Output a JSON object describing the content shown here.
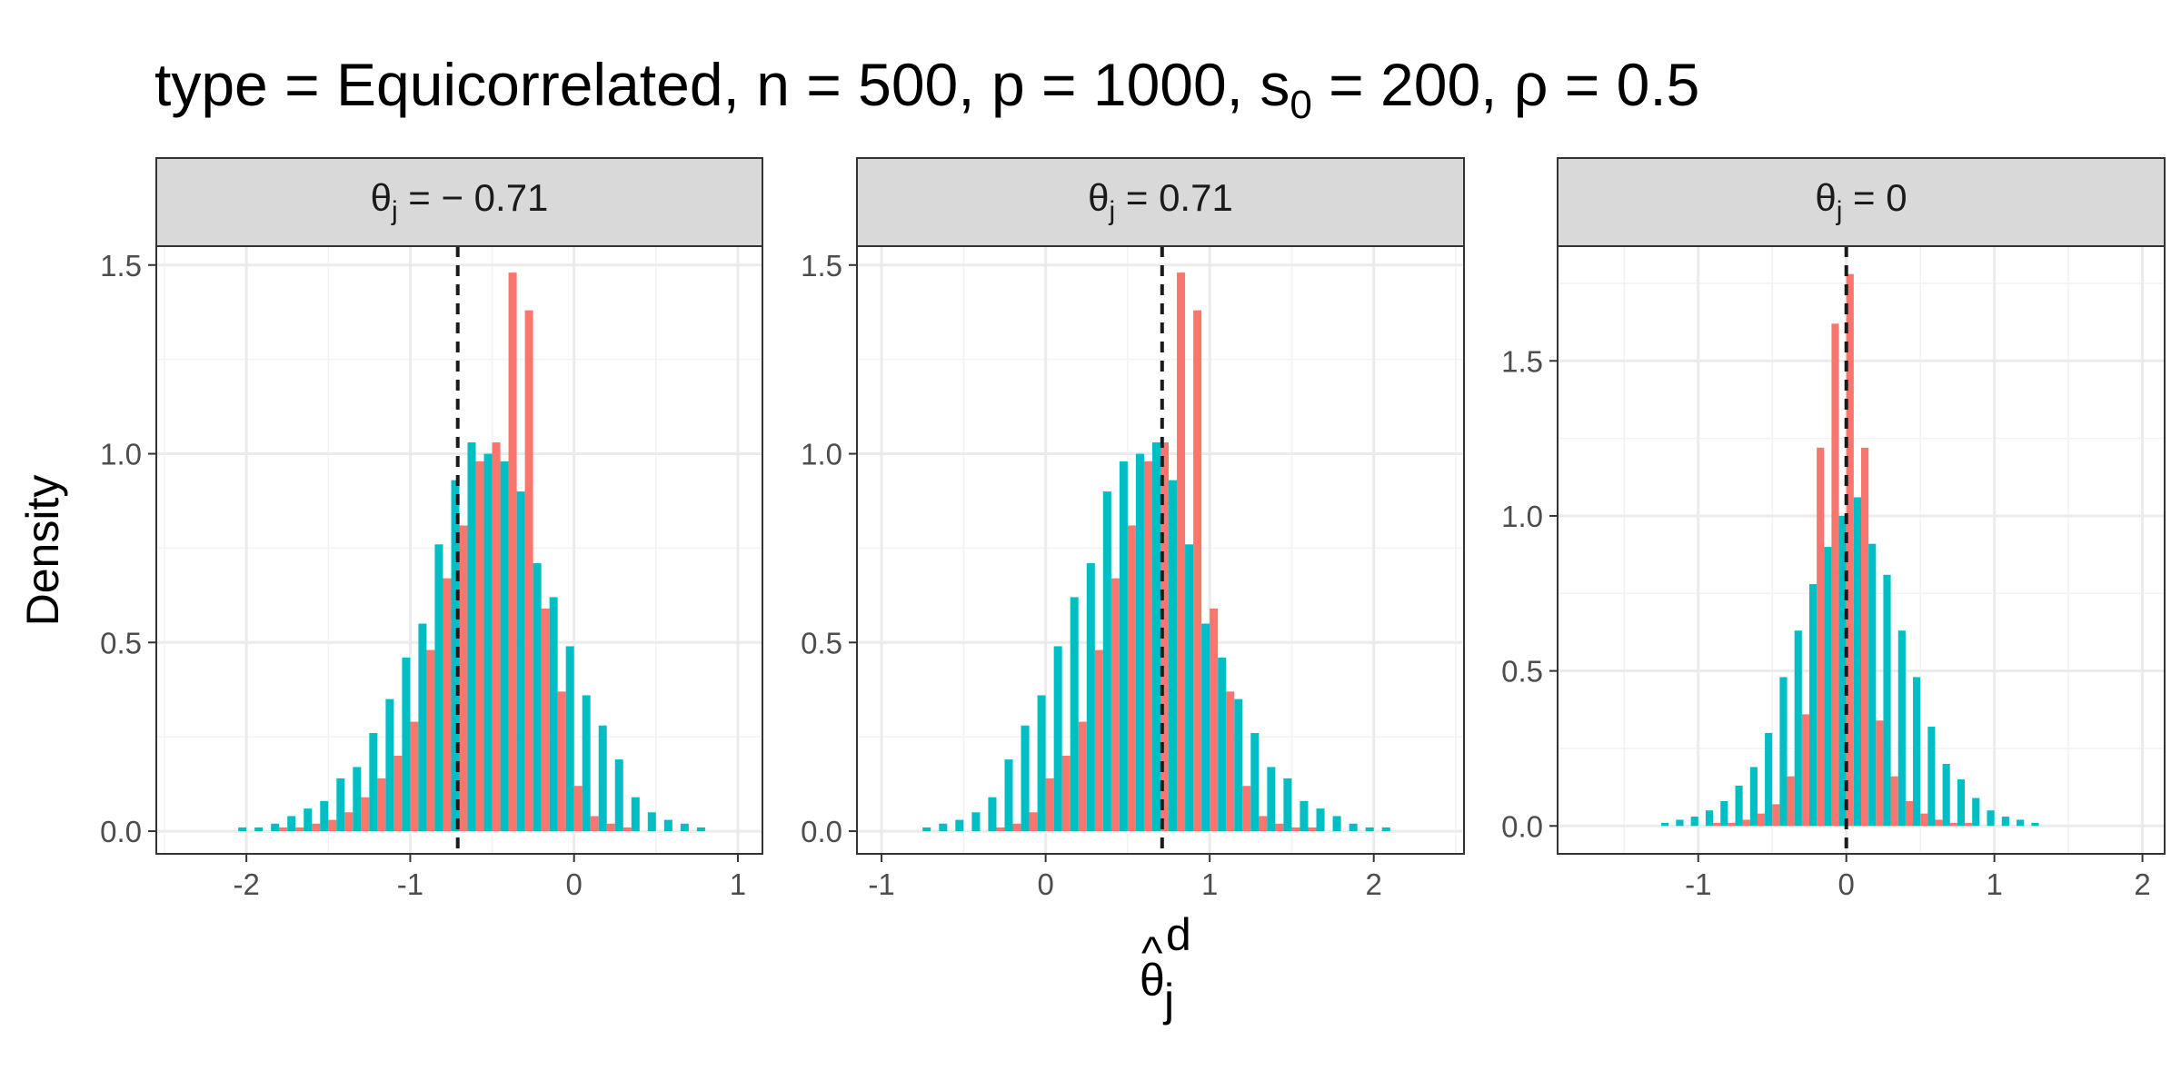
{
  "chart_data": {
    "type": "bar",
    "title": {
      "prefix": "type = Equicorrelated, n = 500, p = 1000, s",
      "sub": "0",
      "suffix": " = 200, ρ = 0.5"
    },
    "xlabel": {
      "base": "θ",
      "hat": "^",
      "sub": "j",
      "sup": "d"
    },
    "ylabel": "Density",
    "bin_width": 0.1,
    "series_colors": [
      "#F8766D",
      "#00BFC4"
    ],
    "legend": "none",
    "grid": true,
    "panels": [
      {
        "strip": {
          "base": "θ",
          "sub": "j",
          "rest": " = − 0.71"
        },
        "true_value": -0.71,
        "xlim": [
          -2.55,
          1.15
        ],
        "ylim": [
          -0.06,
          1.55
        ],
        "x_ticks": [
          -2,
          -1,
          0,
          1
        ],
        "x_tick_labels": [
          "-2",
          "-1",
          "0",
          "1"
        ],
        "y_ticks": [
          0.0,
          0.5,
          1.0,
          1.5
        ],
        "y_tick_labels": [
          "0.0",
          "0.5",
          "1.0",
          "1.5"
        ],
        "series": [
          {
            "color": "#F8766D",
            "x": [
              -1.95,
              -1.85,
              -1.75,
              -1.65,
              -1.55,
              -1.45,
              -1.35,
              -1.25,
              -1.15,
              -1.05,
              -0.95,
              -0.85,
              -0.75,
              -0.65,
              -0.55,
              -0.45,
              -0.35,
              -0.25,
              -0.15,
              -0.05,
              0.05,
              0.15,
              0.25,
              0.35
            ],
            "values": [
              0.0,
              0.0,
              0.01,
              0.01,
              0.02,
              0.03,
              0.05,
              0.09,
              0.14,
              0.2,
              0.29,
              0.48,
              0.67,
              0.81,
              0.98,
              1.03,
              1.48,
              1.38,
              0.59,
              0.37,
              0.12,
              0.04,
              0.02,
              0.01
            ]
          },
          {
            "color": "#00BFC4",
            "x": [
              -2.25,
              -2.15,
              -2.05,
              -1.95,
              -1.85,
              -1.75,
              -1.65,
              -1.55,
              -1.45,
              -1.35,
              -1.25,
              -1.15,
              -1.05,
              -0.95,
              -0.85,
              -0.75,
              -0.65,
              -0.55,
              -0.45,
              -0.35,
              -0.25,
              -0.15,
              -0.05,
              0.05,
              0.15,
              0.25,
              0.35,
              0.45,
              0.55,
              0.65,
              0.75
            ],
            "values": [
              0.0,
              0.0,
              0.01,
              0.01,
              0.02,
              0.04,
              0.06,
              0.08,
              0.14,
              0.17,
              0.26,
              0.35,
              0.46,
              0.55,
              0.76,
              0.93,
              1.03,
              1.0,
              0.98,
              0.9,
              0.71,
              0.62,
              0.49,
              0.36,
              0.28,
              0.19,
              0.09,
              0.05,
              0.03,
              0.02,
              0.01
            ]
          }
        ]
      },
      {
        "strip": {
          "base": "θ",
          "sub": "j",
          "rest": " = 0.71"
        },
        "true_value": 0.71,
        "xlim": [
          -1.15,
          2.55
        ],
        "ylim": [
          -0.06,
          1.55
        ],
        "x_ticks": [
          -1,
          0,
          1,
          2
        ],
        "x_tick_labels": [
          "-1",
          "0",
          "1",
          "2"
        ],
        "y_ticks": [
          0.0,
          0.5,
          1.0,
          1.5
        ],
        "y_tick_labels": [
          "0.0",
          "0.5",
          "1.0",
          "1.5"
        ],
        "series": [
          {
            "color": "#F8766D",
            "x": [
              -0.35,
              -0.25,
              -0.15,
              -0.05,
              0.05,
              0.15,
              0.25,
              0.35,
              0.45,
              0.55,
              0.65,
              0.75,
              0.85,
              0.95,
              1.05,
              1.15,
              1.25,
              1.35,
              1.45,
              1.55,
              1.65,
              1.75,
              1.85,
              1.95
            ],
            "values": [
              0.0,
              0.01,
              0.02,
              0.05,
              0.14,
              0.2,
              0.29,
              0.48,
              0.67,
              0.81,
              0.98,
              1.03,
              1.48,
              1.38,
              0.59,
              0.37,
              0.12,
              0.04,
              0.02,
              0.01,
              0.01,
              0.0,
              0.0,
              0.0
            ],
            "reverse": true
          },
          {
            "color": "#00BFC4",
            "x": [
              -0.75,
              -0.65,
              -0.55,
              -0.45,
              -0.35,
              -0.25,
              -0.15,
              -0.05,
              0.05,
              0.15,
              0.25,
              0.35,
              0.45,
              0.55,
              0.65,
              0.75,
              0.85,
              0.95,
              1.05,
              1.15,
              1.25,
              1.35,
              1.45,
              1.55,
              1.65,
              1.75,
              1.85,
              1.95,
              2.05,
              2.15,
              2.25
            ],
            "values": [
              0.01,
              0.02,
              0.03,
              0.05,
              0.09,
              0.19,
              0.28,
              0.36,
              0.49,
              0.62,
              0.71,
              0.9,
              0.98,
              1.0,
              1.03,
              0.93,
              0.76,
              0.55,
              0.46,
              0.35,
              0.26,
              0.17,
              0.14,
              0.08,
              0.06,
              0.04,
              0.02,
              0.01,
              0.01,
              0.0,
              0.0
            ]
          }
        ]
      },
      {
        "strip": {
          "base": "θ",
          "sub": "j",
          "rest": " = 0"
        },
        "true_value": 0,
        "xlim": [
          -1.95,
          2.15
        ],
        "ylim": [
          -0.09,
          1.87
        ],
        "x_ticks": [
          -1,
          0,
          1,
          2
        ],
        "x_tick_labels": [
          "-1",
          "0",
          "1",
          "2"
        ],
        "y_ticks": [
          0.0,
          0.5,
          1.0,
          1.5
        ],
        "y_tick_labels": [
          "0.0",
          "0.5",
          "1.0",
          "1.5"
        ],
        "series": [
          {
            "color": "#F8766D",
            "x": [
              -0.95,
              -0.85,
              -0.75,
              -0.65,
              -0.55,
              -0.45,
              -0.35,
              -0.25,
              -0.15,
              -0.05,
              0.05,
              0.15,
              0.25,
              0.35,
              0.45,
              0.55,
              0.65,
              0.75,
              0.85,
              0.95
            ],
            "values": [
              0.0,
              0.01,
              0.01,
              0.02,
              0.04,
              0.07,
              0.16,
              0.36,
              1.22,
              1.62,
              1.78,
              1.22,
              0.34,
              0.16,
              0.08,
              0.04,
              0.02,
              0.01,
              0.01,
              0.0
            ]
          },
          {
            "color": "#00BFC4",
            "x": [
              -1.35,
              -1.25,
              -1.15,
              -1.05,
              -0.95,
              -0.85,
              -0.75,
              -0.65,
              -0.55,
              -0.45,
              -0.35,
              -0.25,
              -0.15,
              -0.05,
              0.05,
              0.15,
              0.25,
              0.35,
              0.45,
              0.55,
              0.65,
              0.75,
              0.85,
              0.95,
              1.05,
              1.15,
              1.25,
              1.35
            ],
            "values": [
              0.0,
              0.01,
              0.02,
              0.03,
              0.05,
              0.08,
              0.13,
              0.19,
              0.3,
              0.48,
              0.63,
              0.78,
              0.9,
              1.0,
              1.06,
              0.91,
              0.81,
              0.63,
              0.48,
              0.32,
              0.2,
              0.15,
              0.09,
              0.05,
              0.03,
              0.02,
              0.01,
              0.0
            ]
          }
        ]
      }
    ]
  }
}
